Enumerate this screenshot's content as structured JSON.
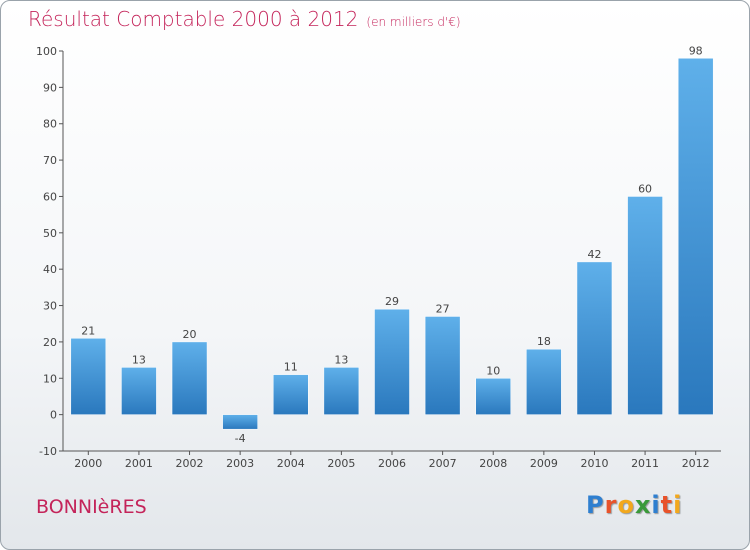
{
  "header": {
    "title": "Résultat Comptable 2000 à 2012",
    "subtitle": "(en milliers d'€)"
  },
  "footer": {
    "town": "BONNIèRES",
    "logo_letters": [
      "P",
      "r",
      "o",
      "x",
      "i",
      "t",
      "i"
    ],
    "logo_colors": [
      "#2e7fd0",
      "#e8532b",
      "#f2a81d",
      "#3a9a3a",
      "#2e7fd0",
      "#e8532b",
      "#f2a81d"
    ]
  },
  "chart_data": {
    "type": "bar",
    "categories": [
      "2000",
      "2001",
      "2002",
      "2003",
      "2004",
      "2005",
      "2006",
      "2007",
      "2008",
      "2009",
      "2010",
      "2011",
      "2012"
    ],
    "values": [
      21,
      13,
      20,
      -4,
      11,
      13,
      29,
      27,
      10,
      18,
      42,
      60,
      98
    ],
    "data_labels": [
      "21",
      "13",
      "20",
      "-4",
      "11",
      "13",
      "29",
      "27",
      "10",
      "18",
      "42",
      "60",
      "98"
    ],
    "ylim": [
      -10,
      100
    ],
    "yticks": [
      -10,
      0,
      10,
      20,
      30,
      40,
      50,
      60,
      70,
      80,
      90,
      100
    ],
    "grid": false,
    "colors": {
      "bar_top": "#5fb0ea",
      "bar_bottom": "#2a78bd",
      "axis": "#555555",
      "text": "#444444"
    }
  }
}
